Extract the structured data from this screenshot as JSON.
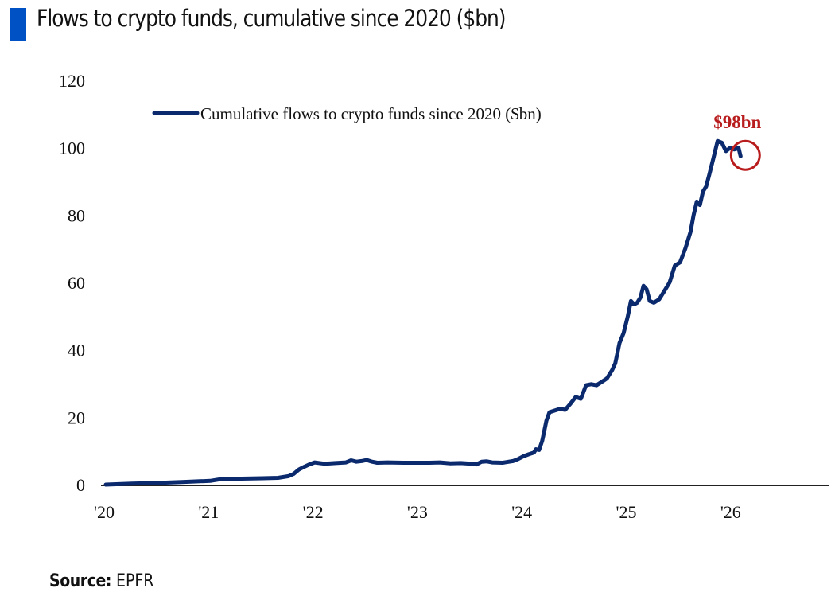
{
  "header": {
    "title": "Flows to crypto funds, cumulative since 2020 ($bn)"
  },
  "footer": {
    "source_label": "Source:",
    "source_value": "EPFR"
  },
  "colors": {
    "title_bar": "#0052c4",
    "series_line": "#0b2a6e",
    "annotation": "#b81c1c",
    "axis": "#222222"
  },
  "chart_data": {
    "type": "line",
    "title": "Flows to crypto funds, cumulative since 2020 ($bn)",
    "xlabel": "",
    "ylabel": "",
    "ylim": [
      0,
      120
    ],
    "xlim": [
      2020,
      2026.85
    ],
    "y_ticks": [
      0,
      20,
      40,
      60,
      80,
      100,
      120
    ],
    "x_ticks": [
      {
        "value": 2020,
        "label": "'20"
      },
      {
        "value": 2021,
        "label": "'21"
      },
      {
        "value": 2022,
        "label": "'22"
      },
      {
        "value": 2023,
        "label": "'23"
      },
      {
        "value": 2024,
        "label": "'24"
      },
      {
        "value": 2025,
        "label": "'25"
      },
      {
        "value": 2026,
        "label": "'26"
      }
    ],
    "grid": false,
    "legend": {
      "position": "top-center",
      "entries": [
        "Cumulative flows to crypto funds since 2020 ($bn)"
      ]
    },
    "annotation": {
      "text": "$98bn",
      "x": 2026.08,
      "y": 97.5,
      "marker": "circle"
    },
    "series": [
      {
        "name": "Cumulative flows to crypto funds since 2020 ($bn)",
        "x": [
          2020.0,
          2020.25,
          2020.5,
          2020.75,
          2020.9,
          2021.0,
          2021.1,
          2021.2,
          2021.35,
          2021.5,
          2021.65,
          2021.75,
          2021.8,
          2021.85,
          2021.9,
          2021.95,
          2022.0,
          2022.1,
          2022.2,
          2022.3,
          2022.35,
          2022.4,
          2022.45,
          2022.5,
          2022.55,
          2022.6,
          2022.7,
          2022.85,
          2023.0,
          2023.1,
          2023.2,
          2023.3,
          2023.4,
          2023.5,
          2023.55,
          2023.6,
          2023.65,
          2023.7,
          2023.8,
          2023.9,
          2023.95,
          2024.0,
          2024.05,
          2024.1,
          2024.12,
          2024.15,
          2024.18,
          2024.2,
          2024.22,
          2024.25,
          2024.3,
          2024.35,
          2024.4,
          2024.45,
          2024.5,
          2024.55,
          2024.6,
          2024.65,
          2024.7,
          2024.75,
          2024.8,
          2024.85,
          2024.88,
          2024.92,
          2024.96,
          2025.0,
          2025.03,
          2025.06,
          2025.09,
          2025.12,
          2025.15,
          2025.18,
          2025.21,
          2025.25,
          2025.3,
          2025.35,
          2025.4,
          2025.45,
          2025.5,
          2025.55,
          2025.6,
          2025.63,
          2025.66,
          2025.69,
          2025.72,
          2025.75,
          2025.78,
          2025.82,
          2025.86,
          2025.9,
          2025.94,
          2025.98,
          2026.02,
          2026.06,
          2026.08
        ],
        "values": [
          0.0,
          0.3,
          0.5,
          0.8,
          1.0,
          1.1,
          1.6,
          1.7,
          1.8,
          1.9,
          2.0,
          2.5,
          3.2,
          4.5,
          5.3,
          6.0,
          6.6,
          6.2,
          6.4,
          6.6,
          7.2,
          6.8,
          7.0,
          7.3,
          6.8,
          6.5,
          6.6,
          6.5,
          6.5,
          6.5,
          6.6,
          6.3,
          6.4,
          6.2,
          6.0,
          6.8,
          6.9,
          6.6,
          6.5,
          7.0,
          7.6,
          8.4,
          9.0,
          9.5,
          10.5,
          10.3,
          13.0,
          16.0,
          19.0,
          21.5,
          22.0,
          22.5,
          22.2,
          24.0,
          26.0,
          25.5,
          29.5,
          29.8,
          29.5,
          30.5,
          31.5,
          34.0,
          36.0,
          42.0,
          45.0,
          50.0,
          54.5,
          53.5,
          54.0,
          55.5,
          59.0,
          58.0,
          54.5,
          54.0,
          55.0,
          57.5,
          60.0,
          65.0,
          66.0,
          70.0,
          75.0,
          80.0,
          84.0,
          83.0,
          87.0,
          88.5,
          92.0,
          97.0,
          102.0,
          101.5,
          99.0,
          100.0,
          99.5,
          100.0,
          97.5
        ]
      }
    ]
  }
}
